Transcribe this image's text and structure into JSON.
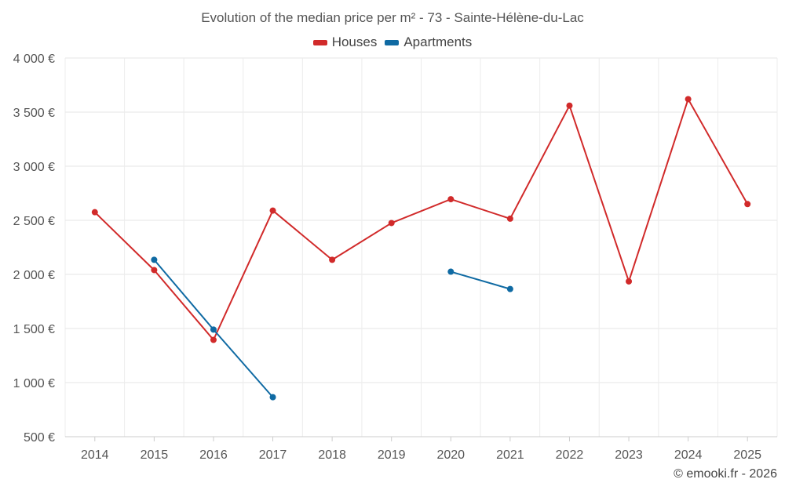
{
  "chart_data": {
    "type": "line",
    "title": "Evolution of the median price per m² - 73 - Sainte-Hélène-du-Lac",
    "xlabel": "",
    "ylabel": "",
    "categories": [
      "2014",
      "2015",
      "2016",
      "2017",
      "2018",
      "2019",
      "2020",
      "2021",
      "2022",
      "2023",
      "2024",
      "2025"
    ],
    "ylim": [
      500,
      4000
    ],
    "yticks": [
      500,
      1000,
      1500,
      2000,
      2500,
      3000,
      3500,
      4000
    ],
    "ytick_labels": [
      "500 €",
      "1 000 €",
      "1 500 €",
      "2 000 €",
      "2 500 €",
      "3 000 €",
      "3 500 €",
      "4 000 €"
    ],
    "grid": true,
    "legend_position": "top-center",
    "series": [
      {
        "name": "Houses",
        "color": "#d12a2a",
        "values": [
          2575,
          2040,
          1395,
          2590,
          2135,
          2475,
          2695,
          2515,
          3560,
          1935,
          3620,
          2650
        ]
      },
      {
        "name": "Apartments",
        "color": "#0f6aa3",
        "values": [
          null,
          2135,
          1490,
          865,
          null,
          null,
          2025,
          1865,
          null,
          null,
          null,
          null
        ]
      }
    ]
  },
  "credit": "© emooki.fr - 2026"
}
